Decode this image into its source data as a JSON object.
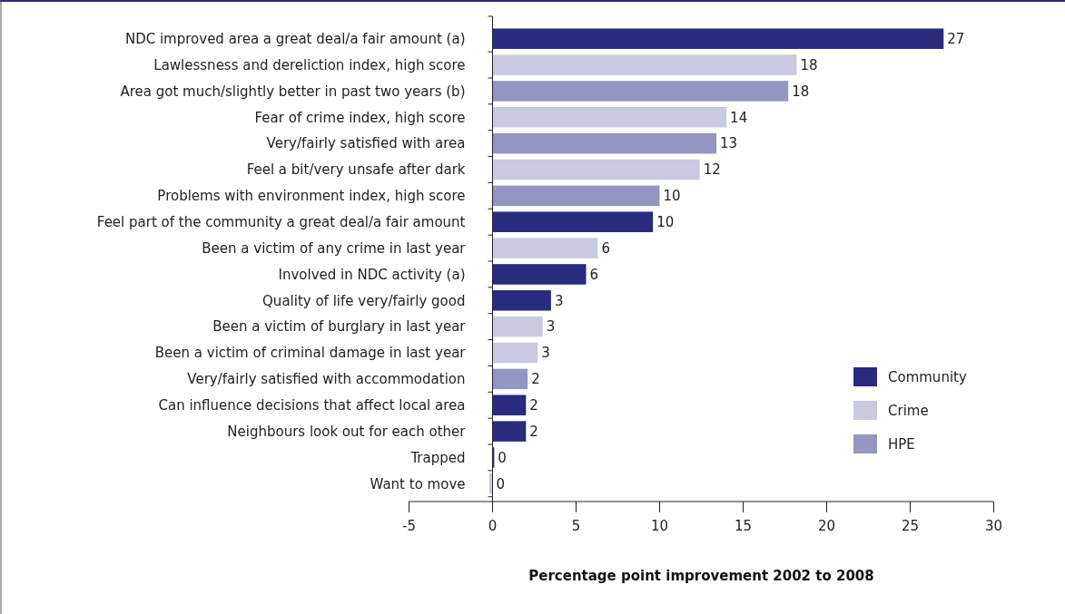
{
  "chart_data": {
    "type": "bar",
    "orientation": "horizontal",
    "stacked": true,
    "xlabel": "Percentage point improvement 2002 to 2008",
    "categories": [
      "NDC improved area a great deal/a fair amount (a)",
      "Lawlessness and dereliction index, high score",
      "Area got much/slightly better in past two years (b)",
      "Fear of crime index, high score",
      "Very/fairly satisfied with area",
      "Feel a bit/very unsafe after dark",
      "Problems with environment index, high score",
      "Feel part of the community a great deal/a fair amount",
      "Been a victim of any crime in last year",
      "Involved in NDC activity (a)",
      "Quality of life very/fairly good",
      "Been a victim of burglary in last year",
      "Been a victim of criminal damage in last year",
      "Very/fairly satisfied with accommodation",
      "Can influence decisions that affect local area",
      "Neighbours look out for each other",
      "Trapped",
      "Want to move"
    ],
    "series": [
      {
        "name": "Community",
        "color": "#2a2a7e",
        "values": [
          27.0,
          null,
          null,
          null,
          null,
          null,
          null,
          9.6,
          null,
          5.6,
          3.5,
          null,
          null,
          null,
          2.0,
          2.0,
          0.1,
          null
        ],
        "value_labels": [
          "27",
          null,
          null,
          null,
          null,
          null,
          null,
          "10",
          null,
          "6",
          "3",
          null,
          null,
          null,
          "2",
          "2",
          "0",
          null
        ]
      },
      {
        "name": "Crime",
        "color": "#c9cae0",
        "values": [
          null,
          18.2,
          null,
          14.0,
          null,
          12.4,
          null,
          null,
          6.3,
          null,
          null,
          3.0,
          2.7,
          null,
          null,
          null,
          null,
          -0.2
        ],
        "value_labels": [
          null,
          "18",
          null,
          "14",
          null,
          "12",
          null,
          null,
          "6",
          null,
          null,
          "3",
          "3",
          null,
          null,
          null,
          null,
          "0"
        ]
      },
      {
        "name": "HPE",
        "color": "#9595c2",
        "values": [
          null,
          null,
          17.7,
          null,
          13.4,
          null,
          10.0,
          null,
          null,
          null,
          null,
          null,
          null,
          2.1,
          null,
          null,
          null,
          null
        ],
        "value_labels": [
          null,
          null,
          "18",
          null,
          "13",
          null,
          "10",
          null,
          null,
          null,
          null,
          null,
          null,
          "2",
          null,
          null,
          null,
          null
        ]
      }
    ],
    "xlim": [
      -5,
      30
    ],
    "xticks": [
      -5,
      0,
      5,
      10,
      15,
      20,
      25,
      30
    ],
    "legend": "bottom right"
  }
}
